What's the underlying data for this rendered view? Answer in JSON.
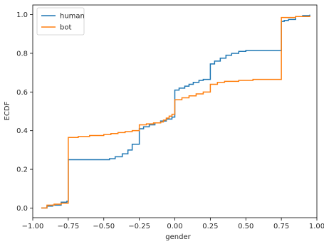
{
  "chart_data": {
    "type": "line",
    "title": "",
    "xlabel": "gender",
    "ylabel": "ECDF",
    "xlim": [
      -1.0,
      1.0
    ],
    "ylim": [
      -0.05,
      1.05
    ],
    "xticks": [
      -1.0,
      -0.75,
      -0.5,
      -0.25,
      0.0,
      0.25,
      0.5,
      0.75,
      1.0
    ],
    "xtick_labels": [
      "−1.00",
      "−0.75",
      "−0.50",
      "−0.25",
      "0.00",
      "0.25",
      "0.50",
      "0.75",
      "1.00"
    ],
    "yticks": [
      0.0,
      0.2,
      0.4,
      0.6,
      0.8,
      1.0
    ],
    "ytick_labels": [
      "0.0",
      "0.2",
      "0.4",
      "0.6",
      "0.8",
      "1.0"
    ],
    "grid": false,
    "legend_position": "top-left",
    "series": [
      {
        "name": "human",
        "color": "#1f77b4",
        "x": [
          -0.94,
          -0.9,
          -0.86,
          -0.8,
          -0.78,
          -0.76,
          -0.75,
          -0.5,
          -0.46,
          -0.42,
          -0.37,
          -0.33,
          -0.3,
          -0.25,
          -0.22,
          -0.18,
          -0.14,
          -0.1,
          -0.06,
          -0.02,
          0.0,
          0.03,
          0.07,
          0.1,
          0.13,
          0.17,
          0.2,
          0.25,
          0.28,
          0.32,
          0.36,
          0.4,
          0.45,
          0.5,
          0.75,
          0.77,
          0.8,
          0.85,
          0.9,
          0.95
        ],
        "y": [
          0.0,
          0.01,
          0.015,
          0.03,
          0.03,
          0.035,
          0.25,
          0.25,
          0.255,
          0.265,
          0.28,
          0.3,
          0.33,
          0.41,
          0.42,
          0.43,
          0.44,
          0.45,
          0.46,
          0.47,
          0.61,
          0.62,
          0.63,
          0.64,
          0.65,
          0.66,
          0.665,
          0.745,
          0.76,
          0.775,
          0.79,
          0.8,
          0.81,
          0.815,
          0.965,
          0.97,
          0.975,
          0.99,
          0.995,
          1.0
        ]
      },
      {
        "name": "bot",
        "color": "#ff7f0e",
        "x": [
          -0.94,
          -0.9,
          -0.85,
          -0.8,
          -0.75,
          -0.68,
          -0.6,
          -0.5,
          -0.45,
          -0.4,
          -0.35,
          -0.3,
          -0.25,
          -0.2,
          -0.15,
          -0.1,
          -0.08,
          -0.06,
          -0.04,
          -0.02,
          0.0,
          0.05,
          0.1,
          0.15,
          0.2,
          0.25,
          0.3,
          0.35,
          0.45,
          0.55,
          0.75,
          0.85,
          0.95
        ],
        "y": [
          0.0,
          0.015,
          0.02,
          0.025,
          0.365,
          0.37,
          0.375,
          0.38,
          0.385,
          0.39,
          0.395,
          0.4,
          0.43,
          0.435,
          0.44,
          0.445,
          0.455,
          0.465,
          0.475,
          0.485,
          0.56,
          0.57,
          0.58,
          0.59,
          0.6,
          0.64,
          0.65,
          0.655,
          0.66,
          0.665,
          0.985,
          0.99,
          0.995
        ]
      }
    ]
  }
}
